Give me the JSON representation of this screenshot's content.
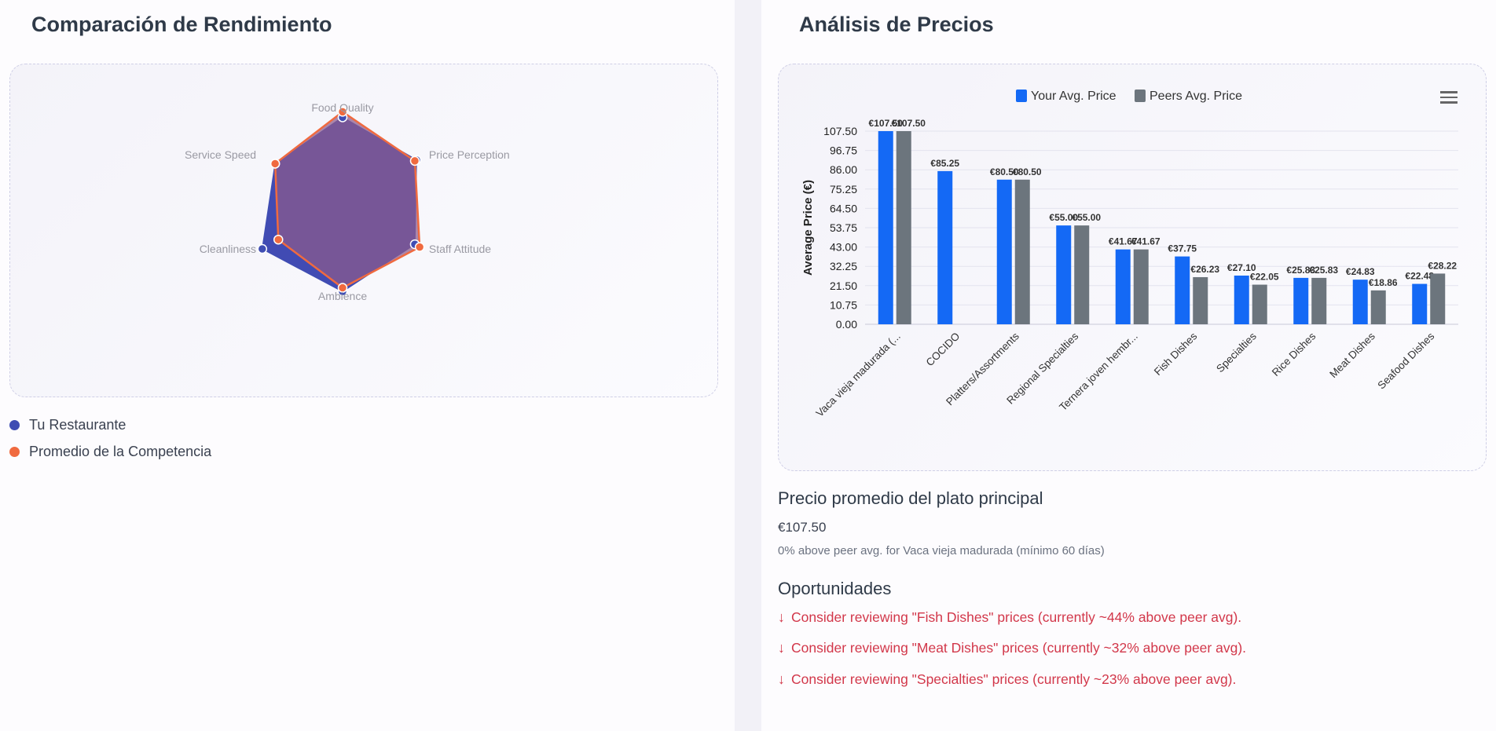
{
  "left": {
    "title": "Comparación de Rendimiento",
    "legend": [
      {
        "label": "Tu Restaurante",
        "color": "#3f4db3"
      },
      {
        "label": "Promedio de la Competencia",
        "color": "#f06a3f"
      }
    ]
  },
  "right": {
    "title": "Análisis de Precios",
    "menu_icon": "hamburger-menu-icon",
    "main_dish": {
      "title": "Precio promedio del plato principal",
      "price": "€107.50",
      "note": "0% above peer avg. for Vaca vieja madurada (mínimo 60 días)"
    },
    "opportunities": {
      "title": "Oportunidades",
      "items": [
        "Consider reviewing \"Fish Dishes\" prices (currently ~44% above peer avg).",
        "Consider reviewing \"Meat Dishes\" prices (currently ~32% above peer avg).",
        "Consider reviewing \"Specialties\" prices (currently ~23% above peer avg)."
      ],
      "icon": "arrow-down-icon"
    }
  },
  "chart_data": [
    {
      "type": "radar",
      "axes": [
        "Food Quality",
        "Price Perception",
        "Staff Attitude",
        "Ambience",
        "Cleanliness",
        "Service Speed"
      ],
      "series": [
        {
          "name": "Tu Restaurante",
          "color": "#3f4db3",
          "values": [
            4.6,
            4.6,
            4.5,
            4.8,
            5.0,
            4.2
          ]
        },
        {
          "name": "Promedio de la Competencia",
          "color": "#f06a3f",
          "values": [
            4.9,
            4.5,
            4.8,
            4.6,
            4.0,
            4.2
          ]
        }
      ],
      "rmax": 5
    },
    {
      "type": "bar",
      "categories": [
        "Vaca vieja madurada (...",
        "COCIDO",
        "Platters/Assortments",
        "Regional Specialties",
        "Ternera joven hembr...",
        "Fish Dishes",
        "Specialties",
        "Rice Dishes",
        "Meat Dishes",
        "Seafood Dishes"
      ],
      "series": [
        {
          "name": "Your Avg. Price",
          "color": "#1469f5",
          "values": [
            107.5,
            85.25,
            80.5,
            55.0,
            41.67,
            37.75,
            27.1,
            25.83,
            24.83,
            22.48
          ]
        },
        {
          "name": "Peers Avg. Price",
          "color": "#6c757d",
          "values": [
            107.5,
            null,
            80.5,
            55.0,
            41.67,
            26.23,
            22.05,
            25.83,
            18.86,
            28.22
          ]
        }
      ],
      "labels_mine": [
        "€107.50",
        "€85.25",
        "€80.50",
        "€55.00",
        "€41.67",
        "€37.75",
        "€27.10",
        "€25.83",
        "€24.83",
        "€22.48"
      ],
      "labels_peer": [
        "€107.50",
        "",
        "€80.50",
        "€55.00",
        "€41.67",
        "€26.23",
        "€22.05",
        "€25.83",
        "€18.86",
        "€28.22"
      ],
      "ylabel": "Average Price (€)",
      "yticks": [
        "107.50",
        "96.75",
        "86.00",
        "75.25",
        "64.50",
        "53.75",
        "43.00",
        "32.25",
        "21.50",
        "10.75",
        "0.00"
      ],
      "ylim": [
        0,
        107.5
      ],
      "legend_position": "top"
    }
  ]
}
